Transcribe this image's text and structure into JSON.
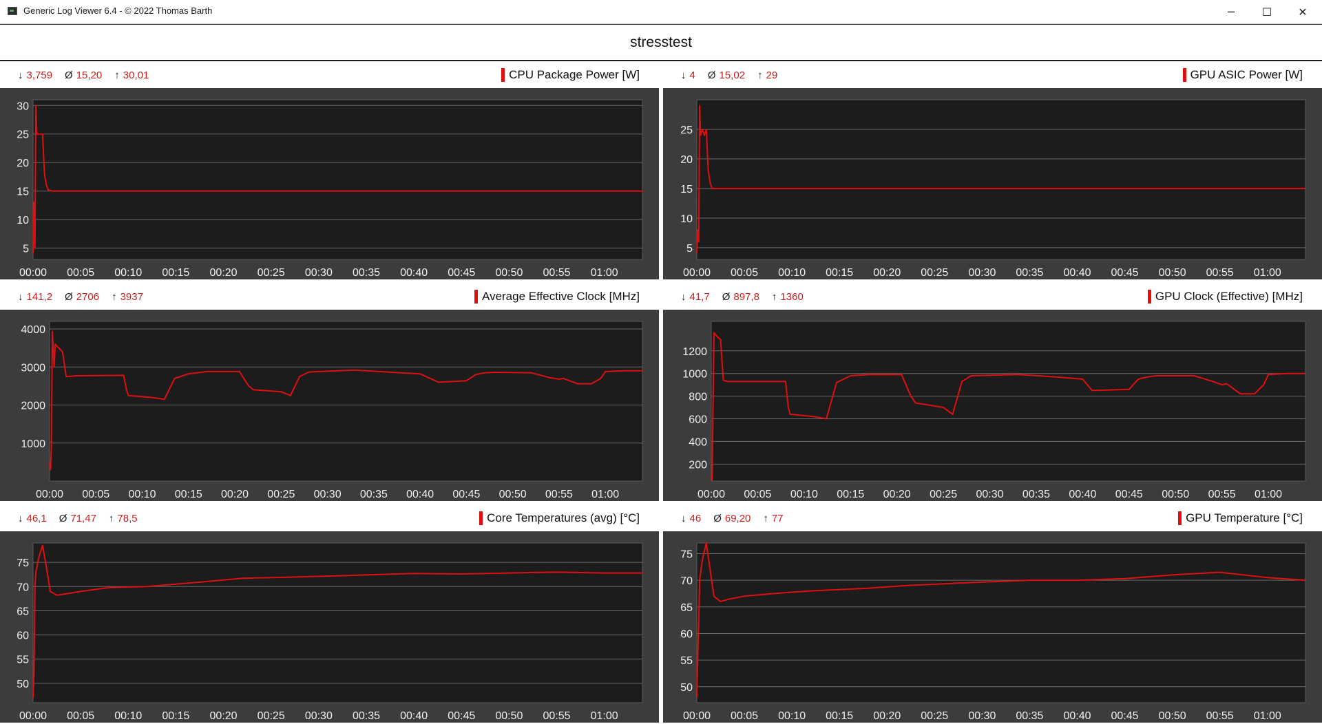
{
  "window": {
    "title": "Generic Log Viewer 6.4 - © 2022 Thomas Barth",
    "minimize_glyph": "─",
    "maximize_glyph": "☐",
    "close_glyph": "✕"
  },
  "heading": "stresstest",
  "colors": {
    "accent": "#e01010",
    "stats_text": "#c71f1f",
    "plot_bg": "#1c1c1c",
    "panel_bg": "#3c3c3c"
  },
  "panels": [
    {
      "title": "CPU Package Power [W]",
      "stats": {
        "min_symbol": "↓",
        "min": "3,759",
        "avg_symbol": "Ø",
        "avg": "15,20",
        "max_symbol": "↑",
        "max": "30,01"
      }
    },
    {
      "title": "GPU ASIC Power [W]",
      "stats": {
        "min_symbol": "↓",
        "min": "4",
        "avg_symbol": "Ø",
        "avg": "15,02",
        "max_symbol": "↑",
        "max": "29"
      }
    },
    {
      "title": "Average Effective Clock [MHz]",
      "stats": {
        "min_symbol": "↓",
        "min": "141,2",
        "avg_symbol": "Ø",
        "avg": "2706",
        "max_symbol": "↑",
        "max": "3937"
      }
    },
    {
      "title": "GPU Clock (Effective) [MHz]",
      "stats": {
        "min_symbol": "↓",
        "min": "41,7",
        "avg_symbol": "Ø",
        "avg": "897,8",
        "max_symbol": "↑",
        "max": "1360"
      }
    },
    {
      "title": "Core Temperatures (avg) [°C]",
      "stats": {
        "min_symbol": "↓",
        "min": "46,1",
        "avg_symbol": "Ø",
        "avg": "71,47",
        "max_symbol": "↑",
        "max": "78,5"
      }
    },
    {
      "title": "GPU Temperature [°C]",
      "stats": {
        "min_symbol": "↓",
        "min": "46",
        "avg_symbol": "Ø",
        "avg": "69,20",
        "max_symbol": "↑",
        "max": "77"
      }
    }
  ],
  "chart_data": [
    {
      "type": "line",
      "title": "CPU Package Power [W]",
      "x_ticks": [
        "00:00",
        "00:05",
        "00:10",
        "00:15",
        "00:20",
        "00:25",
        "00:30",
        "00:35",
        "00:40",
        "00:45",
        "00:50",
        "00:55",
        "01:00"
      ],
      "ylim": [
        3,
        31
      ],
      "y_ticks": [
        5,
        10,
        15,
        20,
        25,
        30
      ],
      "grid": true,
      "x": [
        0,
        0.1,
        0.2,
        0.3,
        0.4,
        0.5,
        0.6,
        1.0,
        1.2,
        1.4,
        1.6,
        2.0,
        5,
        10,
        20,
        30,
        40,
        50,
        60,
        64
      ],
      "y": [
        4,
        13,
        5,
        30,
        25,
        25,
        25,
        25,
        18,
        16,
        15.2,
        15,
        15,
        15,
        15,
        15,
        15,
        15,
        15,
        15
      ]
    },
    {
      "type": "line",
      "title": "GPU ASIC Power [W]",
      "x_ticks": [
        "00:00",
        "00:05",
        "00:10",
        "00:15",
        "00:20",
        "00:25",
        "00:30",
        "00:35",
        "00:40",
        "00:45",
        "00:50",
        "00:55",
        "01:00"
      ],
      "ylim": [
        3,
        30
      ],
      "y_ticks": [
        5,
        10,
        15,
        20,
        25
      ],
      "grid": true,
      "x": [
        0,
        0.1,
        0.2,
        0.3,
        0.4,
        0.6,
        0.8,
        1.0,
        1.2,
        1.4,
        1.6,
        2.0,
        5,
        10,
        20,
        30,
        40,
        50,
        60,
        64
      ],
      "y": [
        4,
        8,
        6,
        29,
        24,
        25,
        24,
        25,
        18,
        16,
        15,
        15,
        15,
        15,
        15,
        15,
        15,
        15,
        15,
        15
      ]
    },
    {
      "type": "line",
      "title": "Average Effective Clock [MHz]",
      "x_ticks": [
        "00:00",
        "00:05",
        "00:10",
        "00:15",
        "00:20",
        "00:25",
        "00:30",
        "00:35",
        "00:40",
        "00:45",
        "00:50",
        "00:55",
        "01:00"
      ],
      "ylim": [
        0,
        4200
      ],
      "y_ticks": [
        1000,
        2000,
        3000,
        4000
      ],
      "grid": true,
      "x": [
        0,
        0.1,
        0.2,
        0.3,
        0.5,
        0.6,
        1.0,
        1.4,
        1.8,
        3,
        8,
        8.3,
        8.5,
        11,
        12.4,
        13.5,
        15,
        17,
        20.5,
        21.5,
        22,
        25,
        26,
        27,
        28,
        33,
        37,
        40,
        42,
        45,
        46,
        47,
        48,
        52,
        54,
        55,
        55.5,
        57,
        58.5,
        59.5,
        60,
        62,
        64
      ],
      "y": [
        500,
        300,
        900,
        3937,
        3000,
        3600,
        3500,
        3400,
        2750,
        2770,
        2780,
        2400,
        2250,
        2200,
        2150,
        2700,
        2820,
        2880,
        2880,
        2500,
        2400,
        2350,
        2250,
        2750,
        2870,
        2920,
        2860,
        2820,
        2600,
        2640,
        2800,
        2850,
        2860,
        2850,
        2720,
        2680,
        2700,
        2560,
        2560,
        2700,
        2880,
        2900,
        2900
      ]
    },
    {
      "type": "line",
      "title": "GPU Clock (Effective) [MHz]",
      "x_ticks": [
        "00:00",
        "00:05",
        "00:10",
        "00:15",
        "00:20",
        "00:25",
        "00:30",
        "00:35",
        "00:40",
        "00:45",
        "00:50",
        "00:55",
        "01:00"
      ],
      "ylim": [
        50,
        1460
      ],
      "y_ticks": [
        200,
        400,
        600,
        800,
        1000,
        1200
      ],
      "grid": true,
      "x": [
        0,
        0.1,
        0.2,
        0.3,
        0.5,
        0.7,
        1.0,
        1.3,
        1.7,
        3,
        8,
        8.3,
        8.5,
        11,
        12.4,
        13.5,
        15,
        17,
        20.5,
        21.5,
        22,
        25,
        26,
        27,
        28,
        33,
        37,
        40,
        41,
        45,
        46,
        47,
        48,
        52,
        54,
        55,
        55.5,
        57,
        58.5,
        59.5,
        60,
        62,
        64
      ],
      "y": [
        100,
        60,
        780,
        1360,
        1340,
        1320,
        1300,
        940,
        930,
        930,
        930,
        700,
        640,
        620,
        600,
        920,
        980,
        990,
        990,
        800,
        740,
        700,
        640,
        930,
        980,
        990,
        970,
        950,
        850,
        860,
        950,
        970,
        980,
        980,
        930,
        900,
        910,
        820,
        820,
        900,
        990,
        1000,
        1000
      ]
    },
    {
      "type": "line",
      "title": "Core Temperatures (avg) [°C]",
      "x_ticks": [
        "00:00",
        "00:05",
        "00:10",
        "00:15",
        "00:20",
        "00:25",
        "00:30",
        "00:35",
        "00:40",
        "00:45",
        "00:50",
        "00:55",
        "01:00"
      ],
      "ylim": [
        46,
        79
      ],
      "y_ticks": [
        50,
        55,
        60,
        65,
        70,
        75
      ],
      "grid": true,
      "x": [
        0,
        0.1,
        0.2,
        0.3,
        0.6,
        1.0,
        1.4,
        1.8,
        2.5,
        3.5,
        5,
        8,
        12,
        18,
        22,
        28,
        35,
        40,
        45,
        50,
        55,
        60,
        64
      ],
      "y": [
        47,
        52,
        70,
        73,
        76,
        78.5,
        74,
        69,
        68.2,
        68.5,
        69,
        69.8,
        70,
        71,
        71.7,
        72,
        72.4,
        72.7,
        72.6,
        72.8,
        73,
        72.8,
        72.8
      ]
    },
    {
      "type": "line",
      "title": "GPU Temperature [°C]",
      "x_ticks": [
        "00:00",
        "00:05",
        "00:10",
        "00:15",
        "00:20",
        "00:25",
        "00:30",
        "00:35",
        "00:40",
        "00:45",
        "00:50",
        "00:55",
        "01:00"
      ],
      "ylim": [
        47,
        77
      ],
      "y_ticks": [
        50,
        55,
        60,
        65,
        70,
        75
      ],
      "grid": true,
      "x": [
        0,
        0.1,
        0.2,
        0.3,
        0.6,
        1.0,
        1.4,
        1.8,
        2.5,
        3.5,
        5,
        8,
        12,
        18,
        22,
        28,
        35,
        40,
        45,
        50,
        55,
        60,
        64
      ],
      "y": [
        48,
        56,
        62,
        70,
        74,
        77,
        72,
        67,
        66,
        66.5,
        67,
        67.5,
        68,
        68.5,
        69,
        69.5,
        70,
        70,
        70.3,
        71,
        71.5,
        70.5,
        70
      ]
    }
  ]
}
